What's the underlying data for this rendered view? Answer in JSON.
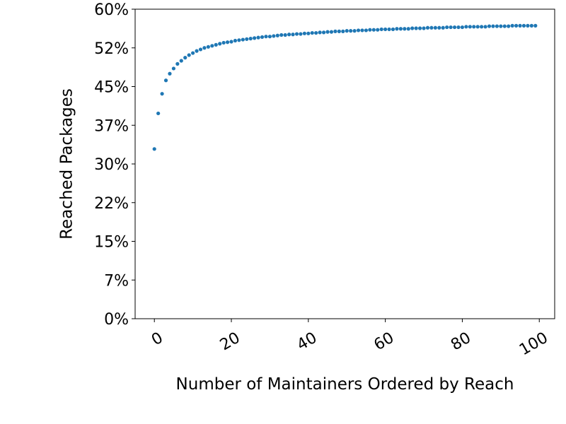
{
  "chart_data": {
    "type": "scatter",
    "title": "",
    "xlabel": "Number of Maintainers Ordered by Reach",
    "ylabel": "Reached Packages",
    "xlim": [
      -5,
      104
    ],
    "ylim": [
      0,
      0.6
    ],
    "x_ticks": [
      0,
      20,
      40,
      60,
      80,
      100
    ],
    "x_tick_labels": [
      "0",
      "20",
      "40",
      "60",
      "80",
      "100"
    ],
    "y_ticks": [
      0,
      0.075,
      0.15,
      0.225,
      0.3,
      0.375,
      0.45,
      0.525,
      0.6
    ],
    "y_tick_labels": [
      "0%",
      "7%",
      "15%",
      "22%",
      "30%",
      "37%",
      "45%",
      "52%",
      "60%"
    ],
    "x_tick_rotation_deg": 30,
    "grid": false,
    "legend": "none",
    "marker_color": "#1f77b4",
    "series": [
      {
        "x": [
          0,
          1,
          2,
          3,
          4,
          5,
          6,
          7,
          8,
          9,
          10,
          11,
          12,
          13,
          14,
          15,
          16,
          17,
          18,
          19,
          20,
          21,
          22,
          23,
          24,
          25,
          26,
          27,
          28,
          29,
          30,
          31,
          32,
          33,
          34,
          35,
          36,
          37,
          38,
          39,
          40,
          41,
          42,
          43,
          44,
          45,
          46,
          47,
          48,
          49,
          50,
          51,
          52,
          53,
          54,
          55,
          56,
          57,
          58,
          59,
          60,
          61,
          62,
          63,
          64,
          65,
          66,
          67,
          68,
          69,
          70,
          71,
          72,
          73,
          74,
          75,
          76,
          77,
          78,
          79,
          80,
          81,
          82,
          83,
          84,
          85,
          86,
          87,
          88,
          89,
          90,
          91,
          92,
          93,
          94,
          95,
          96,
          97,
          98,
          99
        ],
        "y": [
          0.329,
          0.398,
          0.436,
          0.462,
          0.475,
          0.485,
          0.494,
          0.5,
          0.506,
          0.511,
          0.515,
          0.519,
          0.522,
          0.525,
          0.527,
          0.529,
          0.531,
          0.533,
          0.535,
          0.536,
          0.537,
          0.539,
          0.54,
          0.541,
          0.542,
          0.543,
          0.544,
          0.545,
          0.546,
          0.547,
          0.547,
          0.548,
          0.549,
          0.55,
          0.55,
          0.551,
          0.551,
          0.552,
          0.552,
          0.553,
          0.553,
          0.554,
          0.554,
          0.555,
          0.555,
          0.556,
          0.556,
          0.557,
          0.557,
          0.557,
          0.558,
          0.558,
          0.558,
          0.559,
          0.559,
          0.559,
          0.56,
          0.56,
          0.56,
          0.561,
          0.561,
          0.561,
          0.561,
          0.562,
          0.562,
          0.562,
          0.562,
          0.563,
          0.563,
          0.563,
          0.563,
          0.564,
          0.564,
          0.564,
          0.564,
          0.564,
          0.565,
          0.565,
          0.565,
          0.565,
          0.565,
          0.566,
          0.566,
          0.566,
          0.566,
          0.566,
          0.566,
          0.567,
          0.567,
          0.567,
          0.567,
          0.567,
          0.567,
          0.568,
          0.568,
          0.568,
          0.568,
          0.568,
          0.568,
          0.568
        ]
      }
    ]
  }
}
